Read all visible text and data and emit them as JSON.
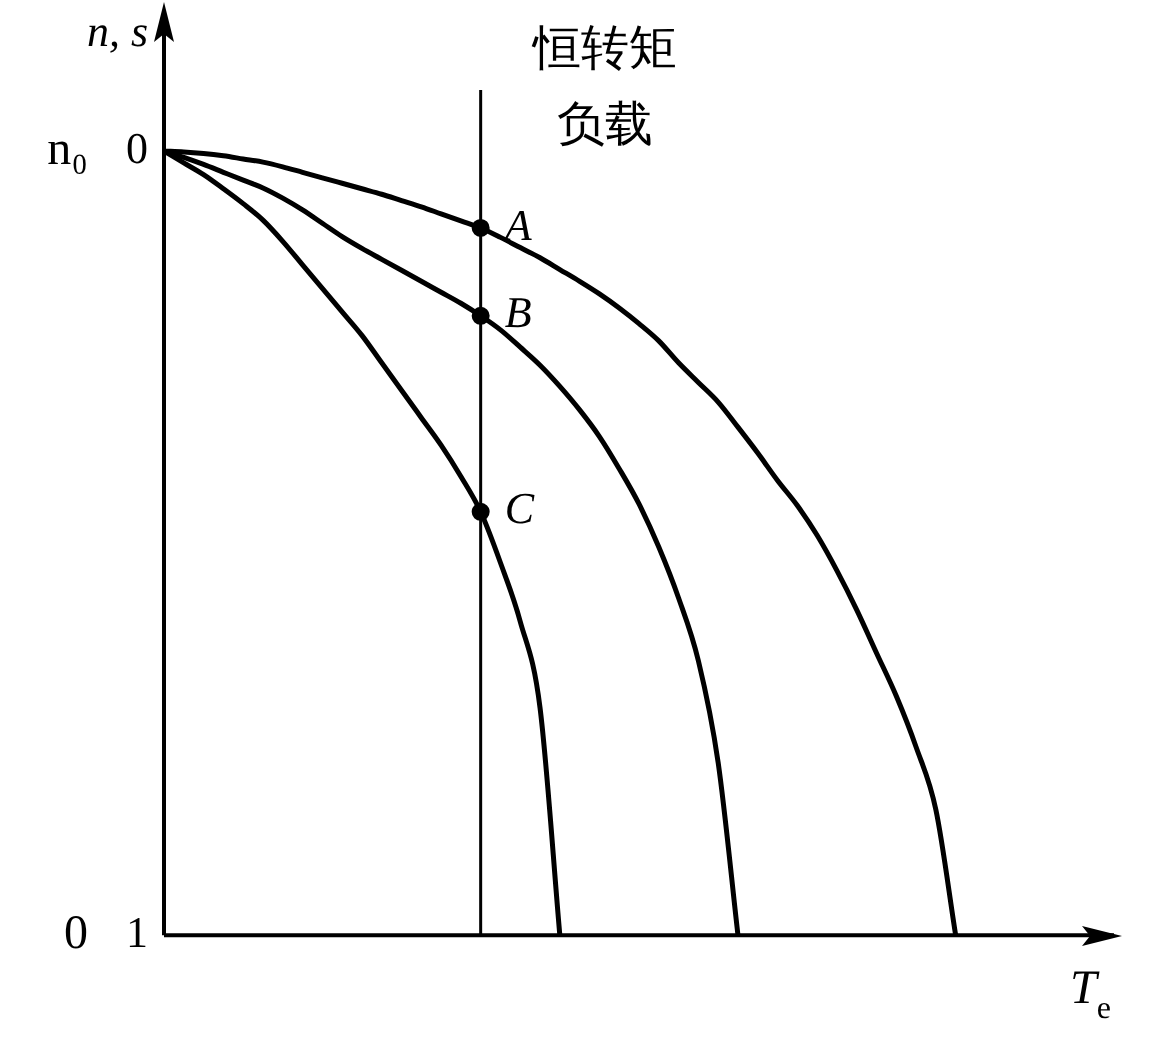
{
  "chart_data": {
    "type": "line",
    "xlabel": "T$_{e}$",
    "ylabel": "n, s",
    "categories": [
      null,
      null,
      null,
      null,
      null,
      null,
      null,
      null,
      null,
      null,
      null,
      null,
      null,
      null,
      null,
      null,
      null,
      null,
      null,
      null,
      null,
      null,
      null,
      null,
      null,
      null,
      null,
      null,
      null,
      null,
      null,
      null,
      null,
      null,
      null,
      null,
      null,
      null,
      null,
      null,
      null,
      null,
      null,
      null,
      null,
      null,
      null,
      null,
      null
    ],
    "ylim": [
      1,
      -0.18
    ],
    "yticks": [
      0,
      1
    ],
    "series": [
      {
        "color": "#000000",
        "values": [
          0,
          0.001,
          0.003,
          0.006,
          0.01,
          0.014,
          0.02,
          0.027,
          0.034,
          0.041,
          0.048,
          0.055,
          0.063,
          0.071,
          0.08,
          0.089,
          0.098,
          0.11,
          0.123,
          0.136,
          0.151,
          0.166,
          0.182,
          0.2,
          0.22,
          0.242,
          0.27,
          0.295,
          0.32,
          0.352,
          0.385,
          0.42,
          0.452,
          0.49,
          0.535,
          0.585,
          0.64,
          0.695,
          0.76,
          0.84,
          1,
          null,
          null,
          null,
          null,
          null,
          null,
          null,
          null
        ]
      },
      {
        "color": "#000000",
        "values": [
          0,
          0.008,
          0.017,
          0.027,
          0.037,
          0.047,
          0.06,
          0.075,
          0.092,
          0.109,
          0.124,
          0.138,
          0.152,
          0.166,
          0.18,
          0.194,
          0.21,
          0.228,
          0.25,
          0.273,
          0.3,
          0.33,
          0.364,
          0.405,
          0.45,
          0.505,
          0.57,
          0.65,
          0.78,
          1,
          null,
          null,
          null,
          null,
          null,
          null,
          null,
          null,
          null,
          null,
          null,
          null,
          null,
          null,
          null,
          null,
          null,
          null,
          null
        ]
      },
      {
        "color": "#000000",
        "values": [
          0,
          0.015,
          0.03,
          0.048,
          0.067,
          0.088,
          0.115,
          0.145,
          0.175,
          0.205,
          0.235,
          0.27,
          0.305,
          0.34,
          0.375,
          0.415,
          0.46,
          0.525,
          0.6,
          0.71,
          1,
          null,
          null,
          null,
          null,
          null,
          null,
          null,
          null,
          null,
          null,
          null,
          null,
          null,
          null,
          null,
          null,
          null,
          null,
          null,
          null,
          null,
          null,
          null,
          null,
          null,
          null,
          null,
          null
        ]
      },
      {
        "type": "scatter",
        "marker": "circle",
        "color": "#000000",
        "values": [
          null,
          null,
          null,
          null,
          null,
          null,
          null,
          null,
          null,
          null,
          null,
          null,
          null,
          null,
          null,
          null,
          0.098,
          null,
          null,
          null,
          null,
          null,
          null,
          null,
          null,
          null,
          null,
          null,
          null,
          null,
          null,
          null,
          null,
          null,
          null,
          null,
          null,
          null,
          null,
          null,
          null,
          null,
          null,
          null,
          null,
          null,
          null,
          null,
          null
        ],
        "value_labels": [
          null,
          null,
          null,
          null,
          null,
          null,
          null,
          null,
          null,
          null,
          null,
          null,
          null,
          null,
          null,
          null,
          "A",
          null,
          null,
          null,
          null,
          null,
          null,
          null,
          null,
          null,
          null,
          null,
          null,
          null,
          null,
          null,
          null,
          null,
          null,
          null,
          null,
          null,
          null,
          null,
          null,
          null,
          null,
          null,
          null,
          null,
          null,
          null,
          null
        ]
      },
      {
        "type": "scatter",
        "marker": "circle",
        "color": "#000000",
        "values": [
          null,
          null,
          null,
          null,
          null,
          null,
          null,
          null,
          null,
          null,
          null,
          null,
          null,
          null,
          null,
          null,
          0.21,
          null,
          null,
          null,
          null,
          null,
          null,
          null,
          null,
          null,
          null,
          null,
          null,
          null,
          null,
          null,
          null,
          null,
          null,
          null,
          null,
          null,
          null,
          null,
          null,
          null,
          null,
          null,
          null,
          null,
          null,
          null,
          null
        ],
        "value_labels": [
          null,
          null,
          null,
          null,
          null,
          null,
          null,
          null,
          null,
          null,
          null,
          null,
          null,
          null,
          null,
          null,
          "B",
          null,
          null,
          null,
          null,
          null,
          null,
          null,
          null,
          null,
          null,
          null,
          null,
          null,
          null,
          null,
          null,
          null,
          null,
          null,
          null,
          null,
          null,
          null,
          null,
          null,
          null,
          null,
          null,
          null,
          null,
          null,
          null
        ]
      },
      {
        "type": "scatter",
        "marker": "circle",
        "color": "#000000",
        "values": [
          null,
          null,
          null,
          null,
          null,
          null,
          null,
          null,
          null,
          null,
          null,
          null,
          null,
          null,
          null,
          null,
          0.46,
          null,
          null,
          null,
          null,
          null,
          null,
          null,
          null,
          null,
          null,
          null,
          null,
          null,
          null,
          null,
          null,
          null,
          null,
          null,
          null,
          null,
          null,
          null,
          null,
          null,
          null,
          null,
          null,
          null,
          null,
          null,
          null
        ],
        "value_labels": [
          null,
          null,
          null,
          null,
          null,
          null,
          null,
          null,
          null,
          null,
          null,
          null,
          null,
          null,
          null,
          null,
          "C",
          null,
          null,
          null,
          null,
          null,
          null,
          null,
          null,
          null,
          null,
          null,
          null,
          null,
          null,
          null,
          null,
          null,
          null,
          null,
          null,
          null,
          null,
          null,
          null,
          null,
          null,
          null,
          null,
          null,
          null,
          null,
          null
        ]
      }
    ],
    "ref_lines": [
      {
        "axis": "x",
        "label": "恒转矩负载",
        "color": "#000000"
      }
    ],
    "annotations": [
      "n₀",
      "0"
    ]
  }
}
